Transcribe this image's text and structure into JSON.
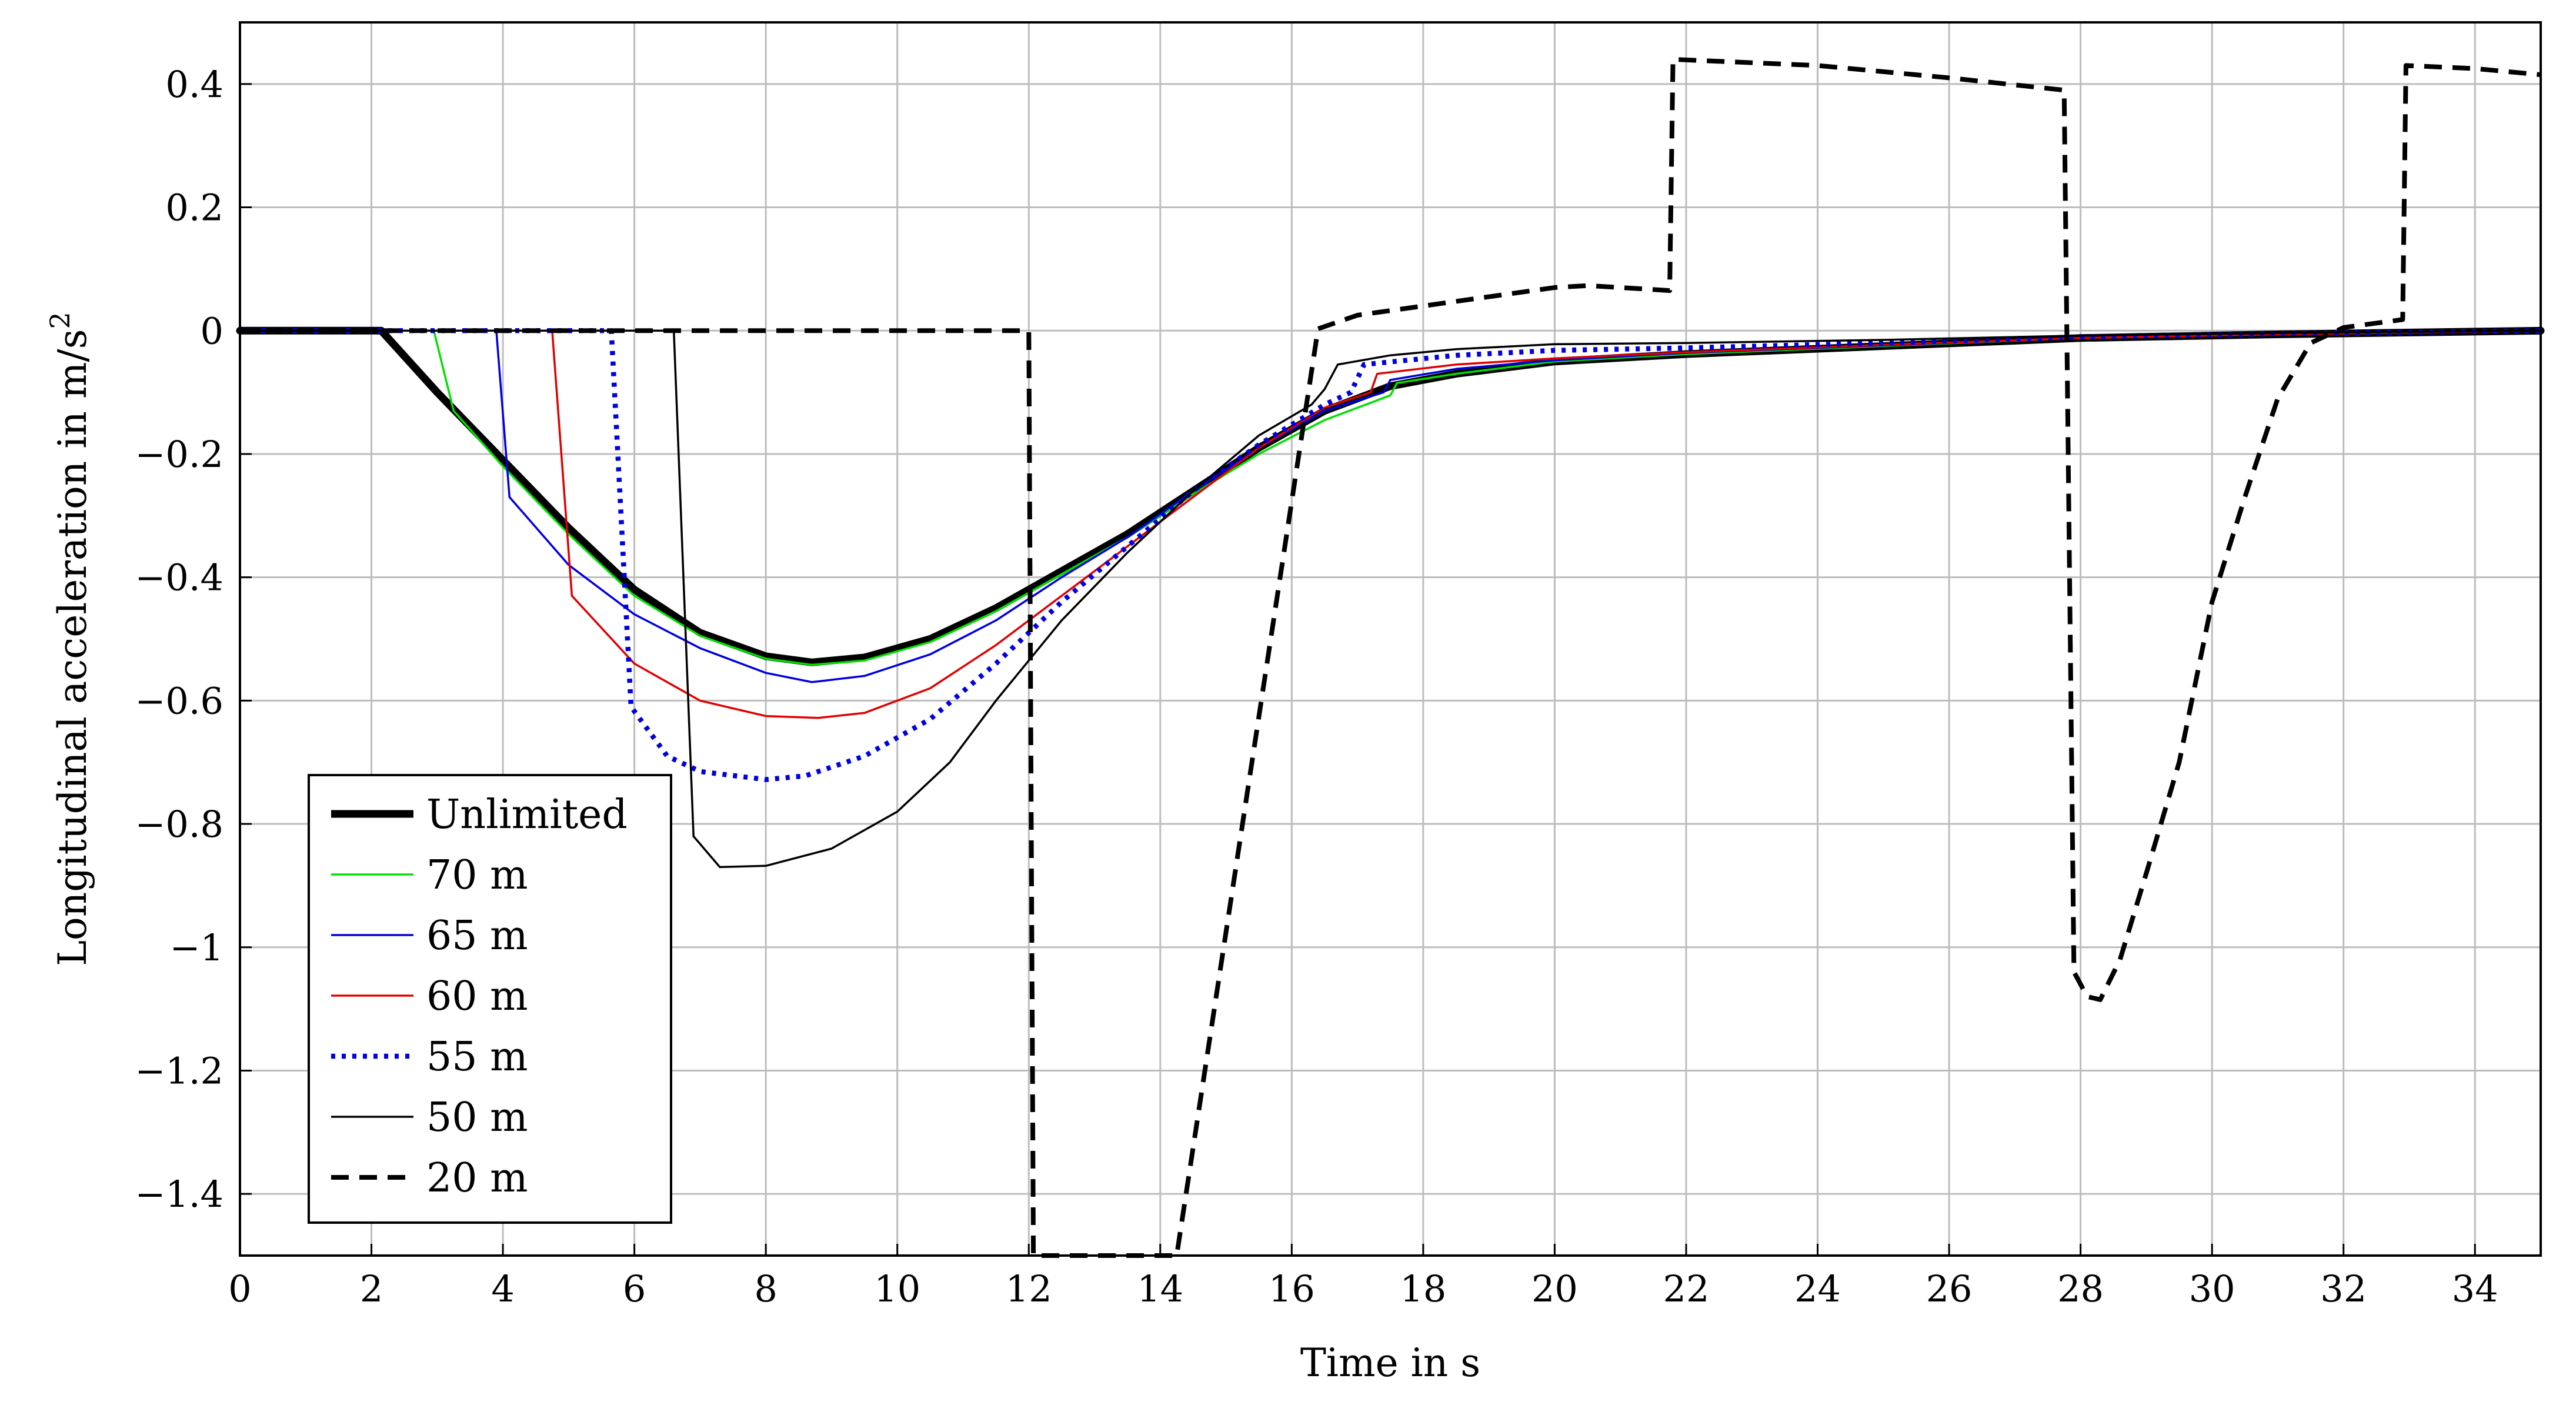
{
  "chart_data": {
    "type": "line",
    "xlabel": "Time in s",
    "ylabel": "Longitudinal acceleration in m/s",
    "ylabel_sup": "2",
    "xlim": [
      0,
      35
    ],
    "ylim": [
      -1.5,
      0.5
    ],
    "grid": true,
    "legend_position": "bottom-left",
    "x_ticks": [
      0,
      2,
      4,
      6,
      8,
      10,
      12,
      14,
      16,
      18,
      20,
      22,
      24,
      26,
      28,
      30,
      32,
      34
    ],
    "x_tick_labels": [
      "0",
      "2",
      "4",
      "6",
      "8",
      "10",
      "12",
      "14",
      "16",
      "18",
      "20",
      "22",
      "24",
      "26",
      "28",
      "30",
      "32",
      "34"
    ],
    "y_ticks": [
      0.4,
      0.2,
      0,
      -0.2,
      -0.4,
      -0.6,
      -0.8,
      -1,
      -1.2,
      -1.4
    ],
    "y_tick_labels": [
      "0.4",
      "0.2",
      "0",
      "−0.2",
      "−0.4",
      "−0.6",
      "−0.8",
      "−1",
      "−1.2",
      "−1.4"
    ],
    "series": [
      {
        "name": "Unlimited",
        "color": "#000000",
        "style": "thick",
        "points": [
          [
            0,
            0
          ],
          [
            2.15,
            0
          ],
          [
            3,
            -0.1
          ],
          [
            4,
            -0.21
          ],
          [
            5,
            -0.32
          ],
          [
            6,
            -0.42
          ],
          [
            7,
            -0.49
          ],
          [
            8,
            -0.528
          ],
          [
            8.7,
            -0.538
          ],
          [
            9.5,
            -0.53
          ],
          [
            10.5,
            -0.5
          ],
          [
            11.5,
            -0.45
          ],
          [
            12.5,
            -0.39
          ],
          [
            13.5,
            -0.33
          ],
          [
            14.5,
            -0.26
          ],
          [
            15.5,
            -0.19
          ],
          [
            16.5,
            -0.13
          ],
          [
            17.5,
            -0.09
          ],
          [
            18.5,
            -0.07
          ],
          [
            20,
            -0.05
          ],
          [
            22,
            -0.038
          ],
          [
            25,
            -0.025
          ],
          [
            28,
            -0.012
          ],
          [
            31,
            -0.006
          ],
          [
            35,
            0
          ]
        ]
      },
      {
        "name": "70 m",
        "color": "#00e000",
        "style": "solid",
        "points": [
          [
            0,
            0
          ],
          [
            2.95,
            0
          ],
          [
            3.25,
            -0.13
          ],
          [
            4,
            -0.22
          ],
          [
            5,
            -0.33
          ],
          [
            6,
            -0.43
          ],
          [
            7,
            -0.495
          ],
          [
            8,
            -0.532
          ],
          [
            8.7,
            -0.542
          ],
          [
            9.5,
            -0.535
          ],
          [
            10.5,
            -0.505
          ],
          [
            11.5,
            -0.455
          ],
          [
            12.5,
            -0.395
          ],
          [
            13.5,
            -0.335
          ],
          [
            14.5,
            -0.265
          ],
          [
            15.5,
            -0.2
          ],
          [
            16.5,
            -0.145
          ],
          [
            17.5,
            -0.105
          ],
          [
            17.6,
            -0.085
          ],
          [
            18.5,
            -0.07
          ],
          [
            20,
            -0.05
          ],
          [
            22,
            -0.038
          ],
          [
            25,
            -0.025
          ],
          [
            28,
            -0.012
          ],
          [
            31,
            -0.006
          ],
          [
            35,
            0
          ]
        ]
      },
      {
        "name": "65 m",
        "color": "#0000e0",
        "style": "solid",
        "points": [
          [
            0,
            0
          ],
          [
            3.9,
            0
          ],
          [
            4.1,
            -0.27
          ],
          [
            5,
            -0.38
          ],
          [
            6,
            -0.46
          ],
          [
            7,
            -0.515
          ],
          [
            8,
            -0.555
          ],
          [
            8.7,
            -0.57
          ],
          [
            9.5,
            -0.56
          ],
          [
            10.5,
            -0.525
          ],
          [
            11.5,
            -0.47
          ],
          [
            12.5,
            -0.4
          ],
          [
            13.5,
            -0.335
          ],
          [
            14.5,
            -0.26
          ],
          [
            15.5,
            -0.19
          ],
          [
            16.5,
            -0.13
          ],
          [
            17.4,
            -0.1
          ],
          [
            17.5,
            -0.08
          ],
          [
            18.5,
            -0.062
          ],
          [
            20,
            -0.048
          ],
          [
            22,
            -0.036
          ],
          [
            25,
            -0.024
          ],
          [
            28,
            -0.012
          ],
          [
            31,
            -0.006
          ],
          [
            35,
            0
          ]
        ]
      },
      {
        "name": "60 m",
        "color": "#e00000",
        "style": "solid",
        "points": [
          [
            0,
            0
          ],
          [
            4.75,
            0
          ],
          [
            5.05,
            -0.43
          ],
          [
            6,
            -0.54
          ],
          [
            7,
            -0.6
          ],
          [
            8,
            -0.625
          ],
          [
            8.8,
            -0.628
          ],
          [
            9.5,
            -0.62
          ],
          [
            10.5,
            -0.58
          ],
          [
            11.5,
            -0.51
          ],
          [
            12.5,
            -0.43
          ],
          [
            13.5,
            -0.35
          ],
          [
            14.5,
            -0.27
          ],
          [
            15.5,
            -0.19
          ],
          [
            16.5,
            -0.125
          ],
          [
            17.2,
            -0.1
          ],
          [
            17.3,
            -0.07
          ],
          [
            18.5,
            -0.055
          ],
          [
            20,
            -0.045
          ],
          [
            22,
            -0.035
          ],
          [
            25,
            -0.023
          ],
          [
            28,
            -0.012
          ],
          [
            31,
            -0.006
          ],
          [
            35,
            0
          ]
        ]
      },
      {
        "name": "55 m",
        "color": "#0000e0",
        "style": "dotted",
        "points": [
          [
            0,
            0
          ],
          [
            5.65,
            0
          ],
          [
            5.95,
            -0.61
          ],
          [
            6.5,
            -0.69
          ],
          [
            7,
            -0.715
          ],
          [
            8,
            -0.728
          ],
          [
            8.6,
            -0.722
          ],
          [
            9.5,
            -0.69
          ],
          [
            10.5,
            -0.63
          ],
          [
            11.5,
            -0.54
          ],
          [
            12.5,
            -0.44
          ],
          [
            13.5,
            -0.35
          ],
          [
            14.5,
            -0.26
          ],
          [
            15.5,
            -0.185
          ],
          [
            16.5,
            -0.12
          ],
          [
            16.9,
            -0.1
          ],
          [
            17.1,
            -0.055
          ],
          [
            18.5,
            -0.04
          ],
          [
            20,
            -0.032
          ],
          [
            22,
            -0.028
          ],
          [
            25,
            -0.02
          ],
          [
            28,
            -0.01
          ],
          [
            31,
            -0.005
          ],
          [
            35,
            0
          ]
        ]
      },
      {
        "name": "50 m",
        "color": "#000000",
        "style": "thin",
        "points": [
          [
            0,
            0
          ],
          [
            6.6,
            0
          ],
          [
            6.9,
            -0.82
          ],
          [
            7.3,
            -0.87
          ],
          [
            8,
            -0.868
          ],
          [
            9,
            -0.84
          ],
          [
            10,
            -0.78
          ],
          [
            10.8,
            -0.7
          ],
          [
            11.5,
            -0.6
          ],
          [
            12.5,
            -0.47
          ],
          [
            13.5,
            -0.36
          ],
          [
            14.5,
            -0.26
          ],
          [
            15.5,
            -0.17
          ],
          [
            16.3,
            -0.12
          ],
          [
            16.5,
            -0.095
          ],
          [
            16.7,
            -0.055
          ],
          [
            17.5,
            -0.04
          ],
          [
            18.5,
            -0.03
          ],
          [
            20,
            -0.022
          ],
          [
            22,
            -0.02
          ],
          [
            25,
            -0.015
          ],
          [
            28,
            -0.008
          ],
          [
            31,
            -0.004
          ],
          [
            35,
            0
          ]
        ]
      },
      {
        "name": "20 m",
        "color": "#000000",
        "style": "dashed",
        "points": [
          [
            0,
            0
          ],
          [
            12,
            0
          ],
          [
            12.07,
            -1.5
          ],
          [
            14.25,
            -1.5
          ],
          [
            16.4,
            0.003
          ],
          [
            17,
            0.025
          ],
          [
            18,
            0.04
          ],
          [
            19,
            0.055
          ],
          [
            20,
            0.07
          ],
          [
            20.5,
            0.073
          ],
          [
            21,
            0.07
          ],
          [
            21.75,
            0.065
          ],
          [
            21.8,
            0.44
          ],
          [
            24,
            0.43
          ],
          [
            26,
            0.41
          ],
          [
            27.75,
            0.39
          ],
          [
            27.9,
            -1.04
          ],
          [
            28.1,
            -1.08
          ],
          [
            28.3,
            -1.085
          ],
          [
            28.6,
            -1.02
          ],
          [
            29,
            -0.88
          ],
          [
            29.5,
            -0.7
          ],
          [
            30,
            -0.44
          ],
          [
            30.5,
            -0.27
          ],
          [
            31,
            -0.11
          ],
          [
            31.5,
            -0.02
          ],
          [
            32,
            0.005
          ],
          [
            32.9,
            0.018
          ],
          [
            32.95,
            0.43
          ],
          [
            34,
            0.425
          ],
          [
            35,
            0.415
          ]
        ]
      }
    ]
  }
}
